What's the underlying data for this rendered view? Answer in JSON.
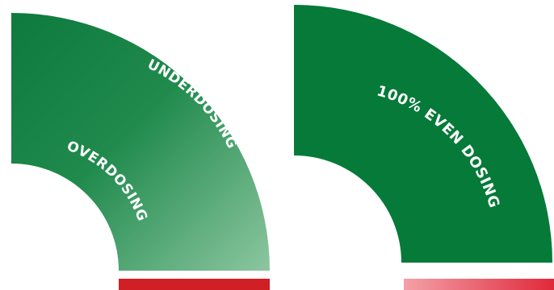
{
  "left_panel": {
    "outer_label": "UNDERDOSING",
    "inner_label": "OVERDOSING",
    "bar_color": "#d11f26",
    "gradient_colors": [
      "#0f7a3e",
      "#1f8a4c",
      "#8cc6a0"
    ]
  },
  "right_panel": {
    "label": "100% EVEN DOSING",
    "fill_color": "#067a38",
    "bar_gradient_colors": [
      "#f4a0a8",
      "#e0293a"
    ]
  }
}
